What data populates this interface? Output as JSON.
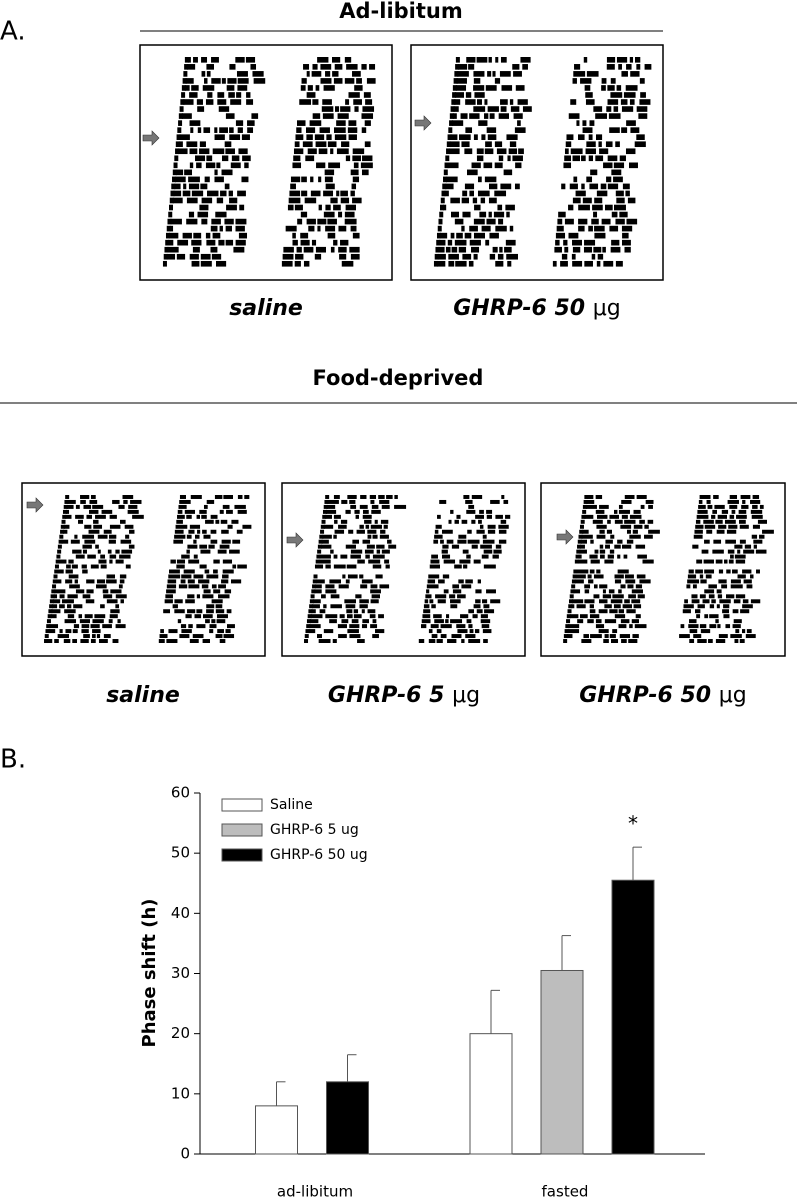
{
  "panel_a": {
    "label": "A.",
    "ad_libitum": {
      "title": "Ad-libitum",
      "panels": [
        {
          "name": "saline"
        },
        {
          "name": "GHRP-6 50",
          "unit": "μg"
        }
      ]
    },
    "food_deprived": {
      "title": "Food-deprived",
      "panels": [
        {
          "name": "saline"
        },
        {
          "name": "GHRP-6 5",
          "unit": "μg"
        },
        {
          "name": "GHRP-6 50",
          "unit": "μg"
        }
      ]
    }
  },
  "panel_b": {
    "label": "B."
  },
  "chart_data": {
    "type": "bar",
    "y_label": "Phase shift (h)",
    "categories": [
      "ad-libitum",
      "fasted"
    ],
    "series": [
      {
        "name": "Saline",
        "color": "#ffffff",
        "values": [
          8,
          20
        ],
        "errors": [
          4,
          7.2
        ]
      },
      {
        "name": "GHRP-6 5 ug",
        "color": "#bdbdbd",
        "values": [
          null,
          30.5
        ],
        "errors": [
          null,
          5.8
        ]
      },
      {
        "name": "GHRP-6 50 ug",
        "color": "#000000",
        "values": [
          12,
          45.5
        ],
        "errors": [
          4.5,
          5.5
        ]
      }
    ],
    "annotation": "*",
    "ylim": [
      0,
      60
    ],
    "yticks": [
      0,
      10,
      20,
      30,
      40,
      50,
      60
    ],
    "legend": "upper-left"
  }
}
